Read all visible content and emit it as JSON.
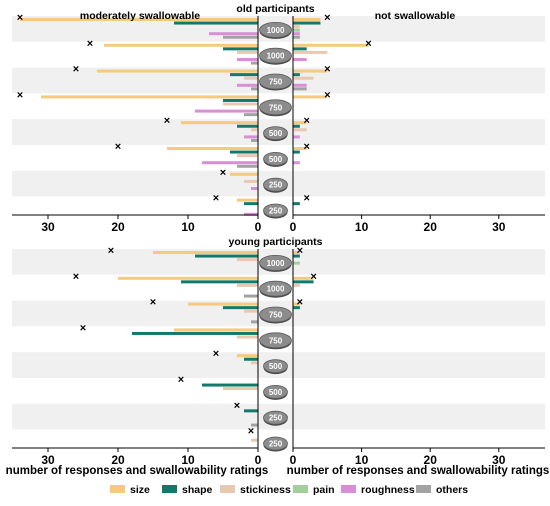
{
  "chart_data": {
    "type": "bar",
    "orientation": "horizontal-diverging",
    "x_axis": {
      "left": {
        "label": "number of responses and swallowability ratings",
        "ticks": [
          30,
          20,
          10,
          0
        ],
        "range": [
          35,
          0
        ]
      },
      "right": {
        "label": "number of responses and swallowability ratings",
        "ticks": [
          0,
          10,
          20,
          30
        ],
        "range": [
          0,
          35
        ]
      }
    },
    "side_labels": {
      "left": "moderately swallowable",
      "right": "not swallowable"
    },
    "legend": {
      "position": "bottom",
      "entries": [
        {
          "key": "size",
          "label": "size",
          "color": "#f5c97e"
        },
        {
          "key": "shape",
          "label": "shape",
          "color": "#137a6b"
        },
        {
          "key": "stickiness",
          "label": "stickiness",
          "color": "#e8c9b0"
        },
        {
          "key": "pain",
          "label": "pain",
          "color": "#a4cf9d"
        },
        {
          "key": "roughness",
          "label": "roughness",
          "color": "#d98fd6"
        },
        {
          "key": "others",
          "label": "others",
          "color": "#a2a2a2"
        }
      ]
    },
    "marker_symbol": "×",
    "panels": [
      {
        "title": "old participants",
        "rows": [
          {
            "pill": "1000",
            "left": {
              "size": 34,
              "shape": 12,
              "stickiness": 0,
              "pain": 0,
              "roughness": 7,
              "others": 5
            },
            "right": {
              "size": 4,
              "shape": 4,
              "stickiness": 1,
              "pain": 1,
              "roughness": 1,
              "others": 1
            },
            "mark_left": 34,
            "mark_right": 5
          },
          {
            "pill": "1000",
            "left": {
              "size": 22,
              "shape": 5,
              "stickiness": 3,
              "pain": 0,
              "roughness": 3,
              "others": 1
            },
            "right": {
              "size": 11,
              "shape": 2,
              "stickiness": 5,
              "pain": 0,
              "roughness": 2,
              "others": 0
            },
            "mark_left": 24,
            "mark_right": 11
          },
          {
            "pill": "750",
            "left": {
              "size": 23,
              "shape": 4,
              "stickiness": 2,
              "pain": 0,
              "roughness": 3,
              "others": 1
            },
            "right": {
              "size": 5,
              "shape": 1,
              "stickiness": 3,
              "pain": 0,
              "roughness": 2,
              "others": 2
            },
            "mark_left": 26,
            "mark_right": 5
          },
          {
            "pill": "750",
            "left": {
              "size": 31,
              "shape": 5,
              "stickiness": 5,
              "pain": 0,
              "roughness": 9,
              "others": 2
            },
            "right": {
              "size": 5,
              "shape": 0,
              "stickiness": 0,
              "pain": 0,
              "roughness": 0,
              "others": 0
            },
            "mark_left": 34,
            "mark_right": 5
          },
          {
            "pill": "500",
            "left": {
              "size": 11,
              "shape": 3,
              "stickiness": 1,
              "pain": 0,
              "roughness": 2,
              "others": 1
            },
            "right": {
              "size": 2,
              "shape": 1,
              "stickiness": 2,
              "pain": 0,
              "roughness": 1,
              "others": 0
            },
            "mark_left": 13,
            "mark_right": 2
          },
          {
            "pill": "500",
            "left": {
              "size": 13,
              "shape": 4,
              "stickiness": 3,
              "pain": 0,
              "roughness": 8,
              "others": 3
            },
            "right": {
              "size": 2,
              "shape": 1,
              "stickiness": 0,
              "pain": 0,
              "roughness": 1,
              "others": 0
            },
            "mark_left": 20,
            "mark_right": 2
          },
          {
            "pill": "250",
            "left": {
              "size": 4,
              "shape": 0,
              "stickiness": 2,
              "pain": 0,
              "roughness": 1,
              "others": 0
            },
            "right": {
              "size": 0,
              "shape": 0,
              "stickiness": 0,
              "pain": 0,
              "roughness": 0,
              "others": 0
            },
            "mark_left": 5,
            "mark_right": null
          },
          {
            "pill": "250",
            "left": {
              "size": 3,
              "shape": 2,
              "stickiness": 0,
              "pain": 0,
              "roughness": 2,
              "others": 0
            },
            "right": {
              "size": 0,
              "shape": 1,
              "stickiness": 0,
              "pain": 0,
              "roughness": 0,
              "others": 0
            },
            "mark_left": 6,
            "mark_right": 2
          }
        ]
      },
      {
        "title": "young participants",
        "rows": [
          {
            "pill": "1000",
            "left": {
              "size": 15,
              "shape": 9,
              "stickiness": 3,
              "pain": 0,
              "roughness": 0,
              "others": 0
            },
            "right": {
              "size": 1,
              "shape": 1,
              "stickiness": 0,
              "pain": 1,
              "roughness": 0,
              "others": 0
            },
            "mark_left": 21,
            "mark_right": 1
          },
          {
            "pill": "1000",
            "left": {
              "size": 20,
              "shape": 11,
              "stickiness": 3,
              "pain": 0,
              "roughness": 0,
              "others": 2
            },
            "right": {
              "size": 3,
              "shape": 3,
              "stickiness": 1,
              "pain": 0,
              "roughness": 0,
              "others": 0
            },
            "mark_left": 26,
            "mark_right": 3
          },
          {
            "pill": "750",
            "left": {
              "size": 10,
              "shape": 5,
              "stickiness": 2,
              "pain": 0,
              "roughness": 0,
              "others": 1
            },
            "right": {
              "size": 1,
              "shape": 1,
              "stickiness": 0,
              "pain": 0,
              "roughness": 0,
              "others": 0
            },
            "mark_left": 15,
            "mark_right": 1
          },
          {
            "pill": "750",
            "left": {
              "size": 12,
              "shape": 18,
              "stickiness": 3,
              "pain": 0,
              "roughness": 0,
              "others": 0
            },
            "right": {
              "size": 0,
              "shape": 0,
              "stickiness": 0,
              "pain": 0,
              "roughness": 0,
              "others": 0
            },
            "mark_left": 25,
            "mark_right": null
          },
          {
            "pill": "500",
            "left": {
              "size": 3,
              "shape": 2,
              "stickiness": 1,
              "pain": 0,
              "roughness": 0,
              "others": 0
            },
            "right": {
              "size": 0,
              "shape": 0,
              "stickiness": 0,
              "pain": 0,
              "roughness": 0,
              "others": 0
            },
            "mark_left": 6,
            "mark_right": null
          },
          {
            "pill": "500",
            "left": {
              "size": 0,
              "shape": 8,
              "stickiness": 5,
              "pain": 0,
              "roughness": 0,
              "others": 0
            },
            "right": {
              "size": 0,
              "shape": 0,
              "stickiness": 0,
              "pain": 0,
              "roughness": 0,
              "others": 0
            },
            "mark_left": 11,
            "mark_right": null
          },
          {
            "pill": "250",
            "left": {
              "size": 0,
              "shape": 2,
              "stickiness": 0,
              "pain": 0,
              "roughness": 0,
              "others": 1
            },
            "right": {
              "size": 0,
              "shape": 0,
              "stickiness": 0,
              "pain": 0,
              "roughness": 0,
              "others": 0
            },
            "mark_left": 3,
            "mark_right": null
          },
          {
            "pill": "250",
            "left": {
              "size": 0,
              "shape": 0,
              "stickiness": 1,
              "pain": 0,
              "roughness": 0,
              "others": 0
            },
            "right": {
              "size": 0,
              "shape": 0,
              "stickiness": 0,
              "pain": 0,
              "roughness": 0,
              "others": 0
            },
            "mark_left": 1,
            "mark_right": null
          }
        ]
      }
    ]
  }
}
